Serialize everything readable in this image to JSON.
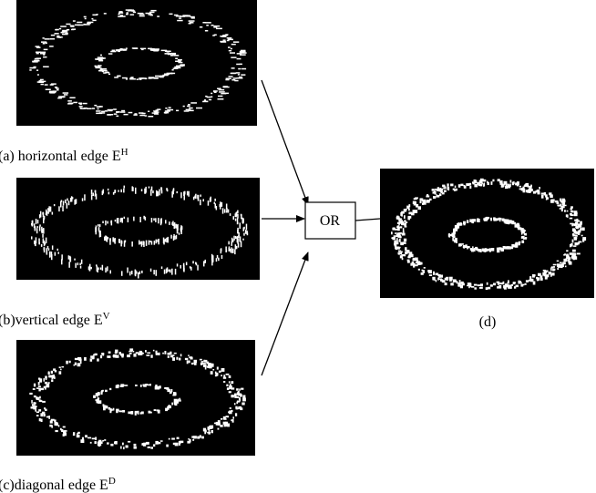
{
  "panels": [
    {
      "caption": "(a)   horizontal edge E",
      "superscript": "H"
    },
    {
      "caption": "(b)vertical edge E",
      "superscript": "V"
    },
    {
      "caption": "(c)diagonal edge  E",
      "superscript": "D"
    }
  ],
  "operator": "OR",
  "output_caption": "(d)"
}
